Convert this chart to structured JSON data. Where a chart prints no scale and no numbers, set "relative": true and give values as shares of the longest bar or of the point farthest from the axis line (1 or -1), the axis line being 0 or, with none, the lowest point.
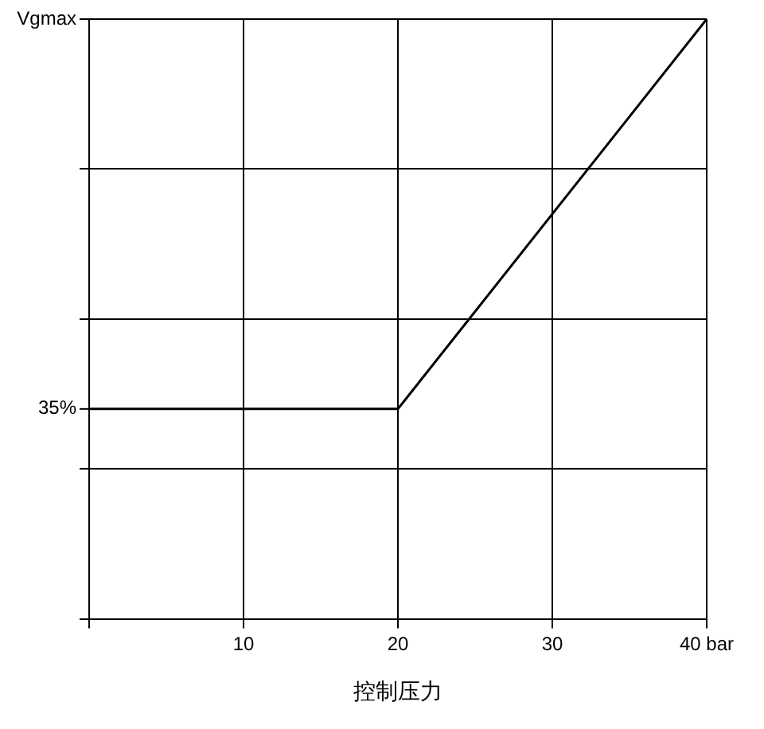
{
  "chart_data": {
    "type": "line",
    "xlabel": "控制压力",
    "relative": true,
    "x": [
      0,
      20,
      40
    ],
    "series": [
      {
        "color": "#000000",
        "values": [
          0.35,
          0.35,
          1
        ]
      }
    ],
    "xlim": [
      0,
      40
    ],
    "xticks": [
      {
        "value": 0,
        "label": null
      },
      10,
      20,
      30,
      {
        "value": 40,
        "label": "40 bar"
      }
    ],
    "annotations": [
      {
        "text": "35%",
        "x": 0,
        "y": 0.35
      },
      "Vgmax"
    ],
    "grid": true,
    "legend": false,
    "marker": "none",
    "line_style": "solid"
  }
}
